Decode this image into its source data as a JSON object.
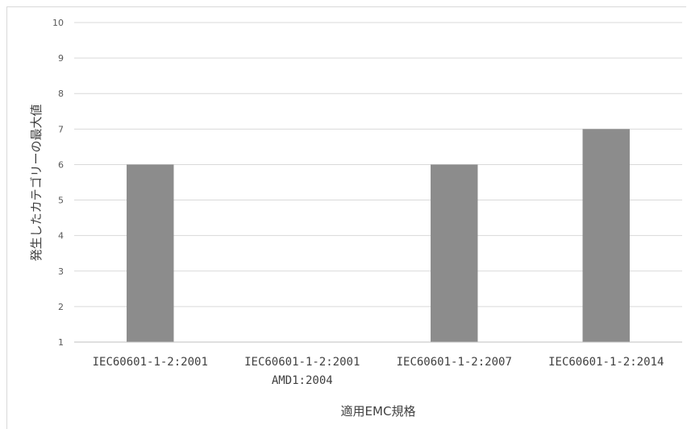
{
  "chart_data": {
    "type": "bar",
    "categories": [
      [
        "IEC60601-1-2:2001"
      ],
      [
        "IEC60601-1-2:2001",
        "AMD1:2004"
      ],
      [
        "IEC60601-1-2:2007"
      ],
      [
        "IEC60601-1-2:2014"
      ]
    ],
    "values": [
      6,
      null,
      6,
      7
    ],
    "ylim": [
      1,
      10
    ],
    "yticks": [
      1,
      2,
      3,
      4,
      5,
      6,
      7,
      8,
      9,
      10
    ],
    "xlabel": "適用EMC規格",
    "ylabel": "発生したカテゴリーの最大値",
    "grid": true,
    "legend": "none",
    "colors": {
      "bar": "#8c8c8c",
      "grid": "#d9d9d9",
      "axis": "#bfbfbf",
      "text": "#595959"
    }
  }
}
